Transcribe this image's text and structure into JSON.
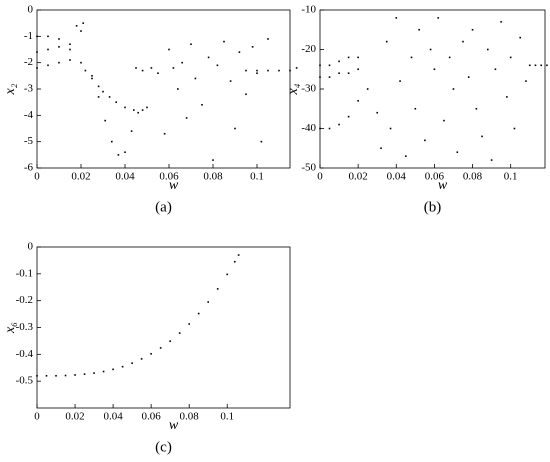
{
  "chart_data": [
    {
      "type": "scatter",
      "caption": "(a)",
      "xlabel": "w",
      "ylabel": "x₂",
      "color": "#000000",
      "xlim": [
        0,
        0.115
      ],
      "ylim": [
        -6,
        0
      ],
      "xticks": [
        0,
        0.02,
        0.04,
        0.06,
        0.08,
        0.1
      ],
      "yticks": [
        0,
        -1,
        -2,
        -3,
        -4,
        -5,
        -6
      ],
      "x": [
        0,
        0.005,
        0.01,
        0.015,
        0,
        0.005,
        0.01,
        0.015,
        0,
        0.005,
        0.01,
        0.015,
        0.02,
        0.022,
        0.025,
        0.028,
        0.03,
        0.033,
        0.036,
        0.04,
        0.044,
        0.048,
        0.05,
        0.025,
        0.028,
        0.031,
        0.034,
        0.037,
        0.04,
        0.043,
        0.046,
        0.018,
        0.02,
        0.021,
        0.045,
        0.048,
        0.052,
        0.055,
        0.058,
        0.06,
        0.062,
        0.064,
        0.066,
        0.068,
        0.07,
        0.072,
        0.075,
        0.078,
        0.08,
        0.082,
        0.085,
        0.088,
        0.09,
        0.092,
        0.095,
        0.098,
        0.1,
        0.102,
        0.105,
        0.095,
        0.1,
        0.105,
        0.11,
        0.115,
        0.118
      ],
      "y": [
        -1,
        -1,
        -1.1,
        -1.3,
        -1.6,
        -1.5,
        -1.4,
        -1.5,
        -2.2,
        -2.1,
        -2.0,
        -1.9,
        -2.0,
        -2.3,
        -2.6,
        -2.9,
        -3.1,
        -3.3,
        -3.5,
        -3.7,
        -3.8,
        -3.8,
        -3.7,
        -2.5,
        -3.3,
        -4.2,
        -5.0,
        -5.5,
        -5.4,
        -4.6,
        -3.9,
        -0.6,
        -0.8,
        -0.5,
        -2.2,
        -2.3,
        -2.2,
        -2.4,
        -4.7,
        -1.5,
        -2.2,
        -3.0,
        -2.0,
        -4.1,
        -1.3,
        -2.6,
        -3.6,
        -1.8,
        -5.7,
        -2.1,
        -1.2,
        -2.7,
        -4.5,
        -1.6,
        -3.2,
        -1.4,
        -2.4,
        -5.0,
        -1.1,
        -2.3,
        -2.3,
        -2.3,
        -2.3,
        -2.3,
        -2.2
      ]
    },
    {
      "type": "scatter",
      "caption": "(b)",
      "xlabel": "w",
      "ylabel": "x₄",
      "color": "#000000",
      "xlim": [
        0,
        0.118
      ],
      "ylim": [
        -50,
        -10
      ],
      "xticks": [
        0,
        0.02,
        0.04,
        0.06,
        0.08,
        0.1
      ],
      "yticks": [
        -10,
        -20,
        -30,
        -40,
        -50
      ],
      "x": [
        0,
        0.005,
        0.01,
        0.015,
        0.02,
        0,
        0.005,
        0.01,
        0.015,
        0.02,
        0,
        0.005,
        0.01,
        0.015,
        0.02,
        0.025,
        0.03,
        0.032,
        0.035,
        0.037,
        0.04,
        0.042,
        0.045,
        0.048,
        0.05,
        0.052,
        0.055,
        0.058,
        0.06,
        0.062,
        0.065,
        0.068,
        0.07,
        0.072,
        0.075,
        0.078,
        0.08,
        0.082,
        0.085,
        0.088,
        0.09,
        0.092,
        0.095,
        0.098,
        0.1,
        0.102,
        0.105,
        0.108,
        0.11,
        0.113,
        0.116,
        0.119
      ],
      "y": [
        -40,
        -40,
        -39,
        -37,
        -33,
        -24,
        -24,
        -23,
        -22,
        -22,
        -27,
        -27,
        -26,
        -26,
        -25,
        -30,
        -36,
        -45,
        -18,
        -40,
        -12,
        -28,
        -47,
        -22,
        -35,
        -15,
        -43,
        -20,
        -25,
        -12,
        -38,
        -22,
        -30,
        -46,
        -18,
        -27,
        -15,
        -35,
        -42,
        -20,
        -48,
        -25,
        -13,
        -32,
        -22,
        -40,
        -17,
        -28,
        -24,
        -24,
        -24,
        -24
      ]
    },
    {
      "type": "scatter",
      "caption": "(c)",
      "xlabel": "w",
      "ylabel": "x₆",
      "color": "#000000",
      "xlim": [
        0,
        0.133
      ],
      "ylim": [
        -0.6,
        0
      ],
      "xticks": [
        0,
        0.02,
        0.04,
        0.06,
        0.08,
        0.1
      ],
      "yticks": [
        0,
        -0.1,
        -0.2,
        -0.3,
        -0.4,
        -0.5
      ],
      "x": [
        0,
        0.005,
        0.01,
        0.015,
        0.02,
        0.025,
        0.03,
        0.035,
        0.04,
        0.045,
        0.05,
        0.055,
        0.06,
        0.065,
        0.07,
        0.075,
        0.08,
        0.085,
        0.09,
        0.095,
        0.1,
        0.104,
        0.106
      ],
      "y": [
        -0.48,
        -0.48,
        -0.48,
        -0.479,
        -0.477,
        -0.474,
        -0.47,
        -0.464,
        -0.456,
        -0.446,
        -0.433,
        -0.417,
        -0.398,
        -0.376,
        -0.351,
        -0.321,
        -0.287,
        -0.248,
        -0.205,
        -0.156,
        -0.102,
        -0.055,
        -0.03
      ]
    }
  ]
}
